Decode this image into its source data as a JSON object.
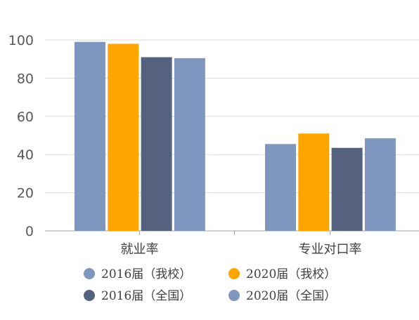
{
  "chart_data": {
    "type": "bar",
    "categories": [
      "就业率",
      "专业对口率"
    ],
    "series": [
      {
        "name": "2016届（我校）",
        "color": "#7F97BF",
        "values": [
          99,
          45.5
        ]
      },
      {
        "name": "2020届（我校）",
        "color": "#FFA500",
        "values": [
          98,
          51
        ]
      },
      {
        "name": "2016届（全国）",
        "color": "#55627F",
        "values": [
          91,
          43.5
        ]
      },
      {
        "name": "2020届（全国）",
        "color": "#7F97BF",
        "values": [
          90.5,
          48.5
        ]
      }
    ],
    "yticks": [
      0,
      20,
      40,
      60,
      80,
      100
    ],
    "ylim": [
      0,
      100
    ],
    "grid": true,
    "legend_position": "bottom"
  }
}
